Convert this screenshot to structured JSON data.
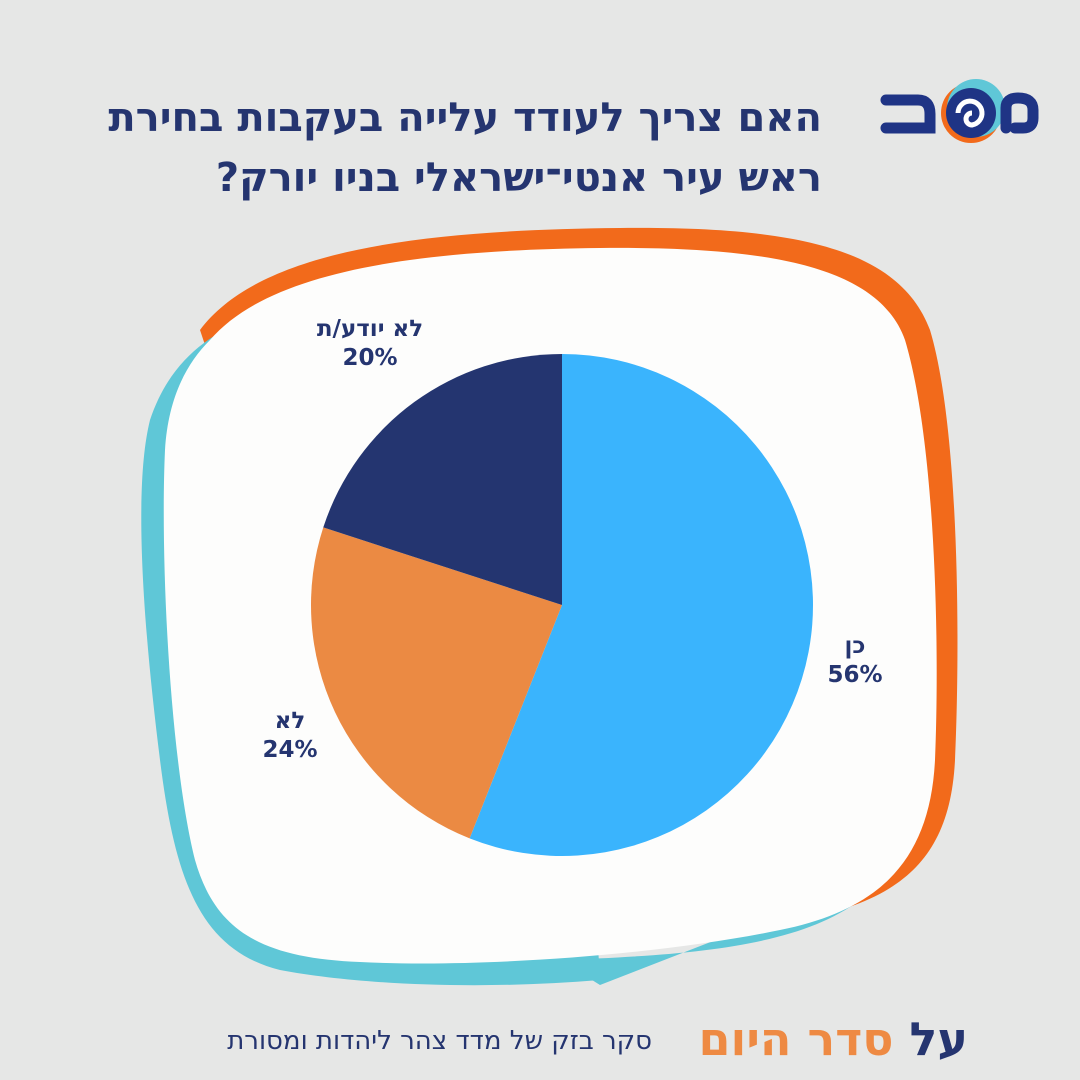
{
  "title": "האם צריך לעודד עלייה בעקבות בחירת ראש עיר אנטי־ישראלי בניו יורק?",
  "logo_text": "משב",
  "colors": {
    "background": "#e6e7e6",
    "navy": "#253570",
    "blue": "#3ab4fd",
    "orange": "#eb8a43",
    "frame_orange": "#f26a1b",
    "frame_teal": "#5fc7d7"
  },
  "chart_data": {
    "type": "pie",
    "title": "האם צריך לעודד עלייה בעקבות בחירת ראש עיר אנטי־ישראלי בניו יורק?",
    "start": "top",
    "direction": "clockwise",
    "slices": [
      {
        "label": "כן",
        "value": 56,
        "value_label": "56%",
        "color": "#3ab4fd"
      },
      {
        "label": "לא",
        "value": 24,
        "value_label": "24%",
        "color": "#eb8a43"
      },
      {
        "label": "לא יודע/ת",
        "value": 20,
        "value_label": "20%",
        "color": "#243570"
      }
    ]
  },
  "footer": {
    "brand_prefix": "על",
    "brand_accent": "סדר היום",
    "caption": "סקר בזק של מדד צהר ליהדות ומסורת"
  }
}
